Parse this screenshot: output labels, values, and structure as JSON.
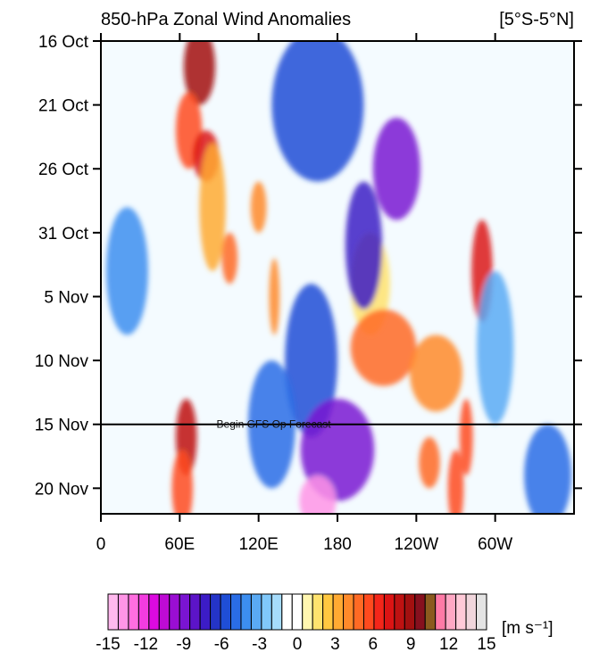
{
  "chart_data": {
    "type": "heatmap",
    "title": "850-hPa Zonal Wind Anomalies",
    "region": "[5°S-5°N]",
    "x_ticks": [
      {
        "label": "0",
        "lon": 0
      },
      {
        "label": "60E",
        "lon": 60
      },
      {
        "label": "120E",
        "lon": 120
      },
      {
        "label": "180",
        "lon": 180
      },
      {
        "label": "120W",
        "lon": 240
      },
      {
        "label": "60W",
        "lon": 300
      }
    ],
    "xlim": [
      0,
      360
    ],
    "y_ticks": [
      {
        "label": "16 Oct",
        "day": 0
      },
      {
        "label": "21 Oct",
        "day": 5
      },
      {
        "label": "26 Oct",
        "day": 10
      },
      {
        "label": "31 Oct",
        "day": 15
      },
      {
        "label": "5 Nov",
        "day": 20
      },
      {
        "label": "10 Nov",
        "day": 25
      },
      {
        "label": "15 Nov",
        "day": 30
      },
      {
        "label": "20 Nov",
        "day": 35
      }
    ],
    "ylim": [
      0,
      37
    ],
    "forecast_line": {
      "label": "Begin GFS Op Forecast",
      "day": 30
    },
    "colorbar": {
      "unit": "[m s⁻¹]",
      "tick_labels": [
        "-15",
        "-12",
        "-9",
        "-6",
        "-3",
        "0",
        "3",
        "6",
        "9",
        "12",
        "15"
      ],
      "tick_values": [
        -15,
        -12,
        -9,
        -6,
        -3,
        0,
        3,
        6,
        9,
        12,
        15
      ],
      "colors": [
        "#ffb9ee",
        "#ff95e6",
        "#ff6ee0",
        "#f33ce0",
        "#dc0ae0",
        "#be0bd5",
        "#9a0ed3",
        "#7a14d2",
        "#5c14c8",
        "#3c1cc6",
        "#2434c8",
        "#1f4ed6",
        "#2a6de6",
        "#3c8ef0",
        "#5aaaf4",
        "#80c8fa",
        "#a6dcfc",
        "#ffffff",
        "#ffffff",
        "#fff6b0",
        "#ffe36e",
        "#ffc840",
        "#ffaa32",
        "#ff8a2a",
        "#ff6a24",
        "#ff4a1e",
        "#f4261a",
        "#dc1414",
        "#be1212",
        "#a21010",
        "#86101e",
        "#8b5a1e",
        "#ff7aa6",
        "#ffa8c4",
        "#ffcad8",
        "#f0d6dc",
        "#e4e4e4"
      ]
    },
    "anomaly_blobs": [
      {
        "lon": 75,
        "day": 2,
        "value": 9,
        "rlon": 12,
        "rday": 3
      },
      {
        "lon": 67,
        "day": 7,
        "value": 6,
        "rlon": 10,
        "rday": 3
      },
      {
        "lon": 80,
        "day": 9,
        "value": 7,
        "rlon": 10,
        "rday": 2
      },
      {
        "lon": 85,
        "day": 13,
        "value": 3,
        "rlon": 10,
        "rday": 5
      },
      {
        "lon": 98,
        "day": 17,
        "value": 5,
        "rlon": 6,
        "rday": 2
      },
      {
        "lon": 120,
        "day": 13,
        "value": 4,
        "rlon": 6,
        "rday": 2
      },
      {
        "lon": 132,
        "day": 20,
        "value": 4,
        "rlon": 4,
        "rday": 3
      },
      {
        "lon": 65,
        "day": 31,
        "value": 8,
        "rlon": 8,
        "rday": 3
      },
      {
        "lon": 62,
        "day": 35,
        "value": 6,
        "rlon": 8,
        "rday": 3
      },
      {
        "lon": 205,
        "day": 19,
        "value": 2,
        "rlon": 15,
        "rday": 4
      },
      {
        "lon": 215,
        "day": 24,
        "value": 5,
        "rlon": 25,
        "rday": 3
      },
      {
        "lon": 255,
        "day": 26,
        "value": 4,
        "rlon": 20,
        "rday": 3
      },
      {
        "lon": 290,
        "day": 18,
        "value": 7,
        "rlon": 8,
        "rday": 4
      },
      {
        "lon": 278,
        "day": 31,
        "value": 6,
        "rlon": 5,
        "rday": 3
      },
      {
        "lon": 270,
        "day": 35,
        "value": 6,
        "rlon": 6,
        "rday": 3
      },
      {
        "lon": 250,
        "day": 33,
        "value": 5,
        "rlon": 8,
        "rday": 2
      },
      {
        "lon": 165,
        "day": 5,
        "value": -6,
        "rlon": 35,
        "rday": 6
      },
      {
        "lon": 225,
        "day": 10,
        "value": -9,
        "rlon": 18,
        "rday": 4
      },
      {
        "lon": 200,
        "day": 16,
        "value": -7,
        "rlon": 14,
        "rday": 5
      },
      {
        "lon": 160,
        "day": 25,
        "value": -6,
        "rlon": 20,
        "rday": 6
      },
      {
        "lon": 180,
        "day": 32,
        "value": -9,
        "rlon": 28,
        "rday": 4
      },
      {
        "lon": 165,
        "day": 36,
        "value": -14,
        "rlon": 14,
        "rday": 2
      },
      {
        "lon": 130,
        "day": 30,
        "value": -5,
        "rlon": 18,
        "rday": 5
      },
      {
        "lon": 20,
        "day": 18,
        "value": -4,
        "rlon": 16,
        "rday": 5
      },
      {
        "lon": 340,
        "day": 34,
        "value": -5,
        "rlon": 18,
        "rday": 4
      },
      {
        "lon": 300,
        "day": 24,
        "value": -3,
        "rlon": 14,
        "rday": 6
      }
    ]
  }
}
